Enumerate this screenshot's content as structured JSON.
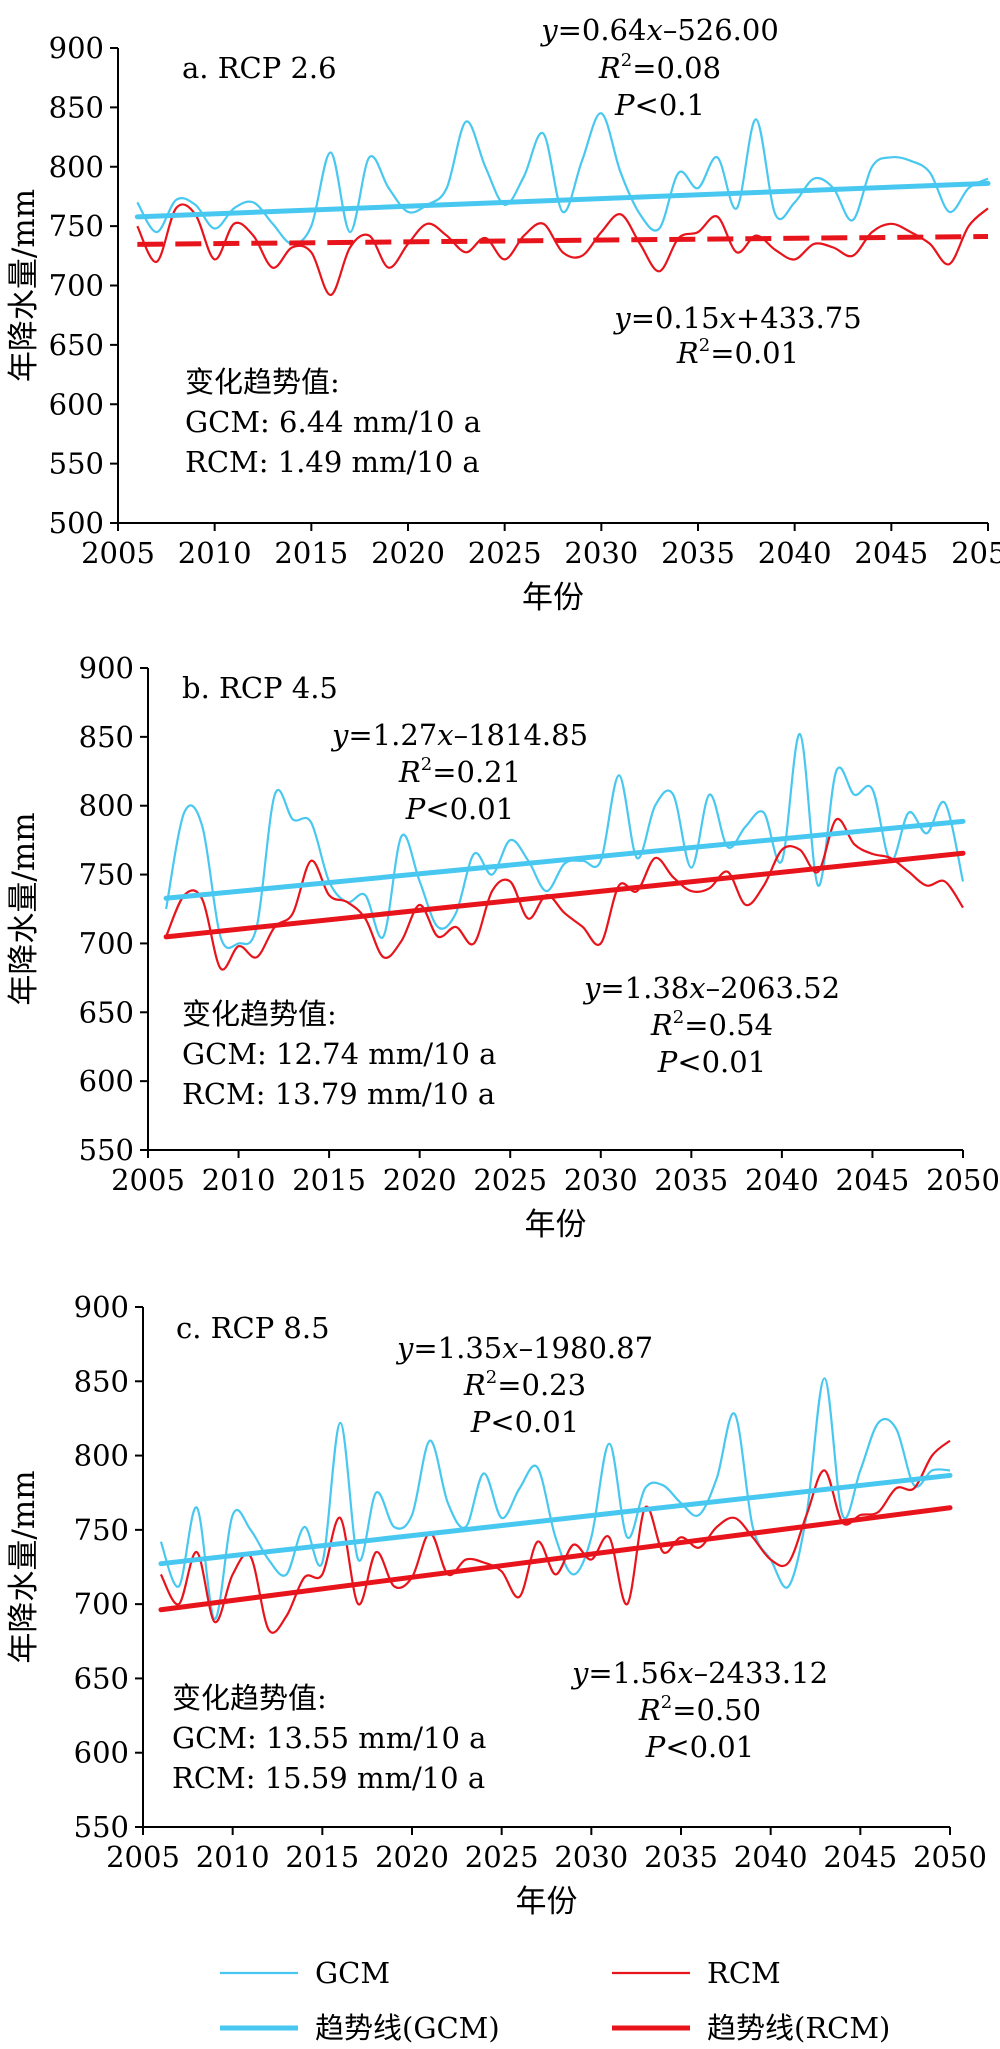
{
  "legend": {
    "entries": [
      {
        "label": "GCM",
        "color": "#48C8F0",
        "style": "thin"
      },
      {
        "label": "RCM",
        "color": "#E8141C",
        "style": "thin"
      },
      {
        "label": "趋势线(GCM)",
        "color": "#48C8F0",
        "style": "thick"
      },
      {
        "label": "趋势线(RCM)",
        "color": "#E8141C",
        "style": "thick"
      }
    ]
  },
  "chart_data": [
    {
      "type": "line",
      "title": "a. RCP 2.6",
      "xlabel": "年份",
      "ylabel": "年降水量/mm",
      "xlim": [
        2005,
        2050
      ],
      "ylim": [
        500,
        900
      ],
      "xticks": [
        2005,
        2010,
        2015,
        2020,
        2025,
        2030,
        2035,
        2040,
        2045,
        2050
      ],
      "yticks": [
        500,
        550,
        600,
        650,
        700,
        750,
        800,
        850,
        900
      ],
      "x": [
        2006,
        2007,
        2008,
        2009,
        2010,
        2011,
        2012,
        2013,
        2014,
        2015,
        2016,
        2017,
        2018,
        2019,
        2020,
        2021,
        2022,
        2023,
        2024,
        2025,
        2026,
        2027,
        2028,
        2029,
        2030,
        2031,
        2032,
        2033,
        2034,
        2035,
        2036,
        2037,
        2038,
        2039,
        2040,
        2041,
        2042,
        2043,
        2044,
        2045,
        2046,
        2047,
        2048,
        2049,
        2050
      ],
      "series": [
        {
          "name": "GCM",
          "color": "#48C8F0",
          "values": [
            770,
            745,
            772,
            768,
            748,
            765,
            770,
            752,
            735,
            750,
            812,
            745,
            808,
            782,
            762,
            768,
            782,
            838,
            800,
            768,
            792,
            828,
            762,
            805,
            845,
            795,
            760,
            748,
            795,
            782,
            808,
            765,
            840,
            760,
            770,
            790,
            782,
            755,
            800,
            808,
            805,
            795,
            762,
            782,
            790
          ]
        },
        {
          "name": "RCM",
          "color": "#E8141C",
          "values": [
            750,
            720,
            765,
            760,
            722,
            752,
            742,
            715,
            732,
            728,
            692,
            732,
            742,
            715,
            735,
            752,
            742,
            728,
            740,
            722,
            742,
            752,
            728,
            725,
            745,
            760,
            735,
            712,
            740,
            745,
            758,
            728,
            742,
            730,
            722,
            735,
            732,
            725,
            745,
            752,
            745,
            735,
            718,
            750,
            765
          ]
        }
      ],
      "trends": [
        {
          "name": "趋势线(GCM)",
          "slope": 0.64,
          "intercept": -526.0,
          "color": "#48C8F0",
          "dashed": false
        },
        {
          "name": "趋势线(RCM)",
          "slope": 0.15,
          "intercept": 433.75,
          "color": "#E8141C",
          "dashed": true
        }
      ],
      "annotations": {
        "gcm_eq": [
          "y",
          "=0.64",
          "x",
          "–526.00"
        ],
        "gcm_r2": "=0.08",
        "gcm_p": "<0.1",
        "rcm_eq": [
          "y",
          "=0.15",
          "x",
          "+433.75"
        ],
        "rcm_r2": "=0.01",
        "rcm_p": "",
        "trend_title": "变化趋势值:",
        "trend_gcm": "GCM: 6.44 mm/10 a",
        "trend_rcm": "RCM: 1.49 mm/10 a"
      }
    },
    {
      "type": "line",
      "title": "b. RCP 4.5",
      "xlabel": "年份",
      "ylabel": "年降水量/mm",
      "xlim": [
        2005,
        2050
      ],
      "ylim": [
        550,
        900
      ],
      "xticks": [
        2005,
        2010,
        2015,
        2020,
        2025,
        2030,
        2035,
        2040,
        2045,
        2050
      ],
      "yticks": [
        550,
        600,
        650,
        700,
        750,
        800,
        850,
        900
      ],
      "x": [
        2006,
        2007,
        2008,
        2009,
        2010,
        2011,
        2012,
        2013,
        2014,
        2015,
        2016,
        2017,
        2018,
        2019,
        2020,
        2021,
        2022,
        2023,
        2024,
        2025,
        2026,
        2027,
        2028,
        2029,
        2030,
        2031,
        2032,
        2033,
        2034,
        2035,
        2036,
        2037,
        2038,
        2039,
        2040,
        2041,
        2042,
        2043,
        2044,
        2045,
        2046,
        2047,
        2048,
        2049,
        2050
      ],
      "series": [
        {
          "name": "GCM",
          "color": "#48C8F0",
          "values": [
            725,
            795,
            785,
            705,
            700,
            712,
            808,
            790,
            788,
            745,
            730,
            735,
            705,
            778,
            745,
            712,
            722,
            765,
            750,
            775,
            760,
            738,
            758,
            760,
            760,
            822,
            762,
            800,
            808,
            755,
            808,
            770,
            785,
            795,
            760,
            852,
            742,
            825,
            808,
            812,
            760,
            795,
            780,
            802,
            745
          ]
        },
        {
          "name": "RCM",
          "color": "#E8141C",
          "values": [
            705,
            735,
            732,
            682,
            698,
            690,
            712,
            722,
            760,
            735,
            730,
            718,
            690,
            702,
            728,
            705,
            712,
            700,
            738,
            745,
            718,
            735,
            722,
            712,
            700,
            742,
            738,
            762,
            748,
            738,
            740,
            752,
            728,
            742,
            768,
            768,
            752,
            790,
            772,
            765,
            762,
            752,
            742,
            745,
            726
          ]
        }
      ],
      "trends": [
        {
          "name": "趋势线(GCM)",
          "slope": 1.27,
          "intercept": -1814.85,
          "color": "#48C8F0",
          "dashed": false
        },
        {
          "name": "趋势线(RCM)",
          "slope": 1.38,
          "intercept": -2063.52,
          "color": "#E8141C",
          "dashed": false
        }
      ],
      "annotations": {
        "gcm_eq": [
          "y",
          "=1.27",
          "x",
          "–1814.85"
        ],
        "gcm_r2": "=0.21",
        "gcm_p": "<0.01",
        "rcm_eq": [
          "y",
          "=1.38",
          "x",
          "–2063.52"
        ],
        "rcm_r2": "=0.54",
        "rcm_p": "<0.01",
        "trend_title": "变化趋势值:",
        "trend_gcm": "GCM: 12.74 mm/10 a",
        "trend_rcm": "RCM: 13.79 mm/10 a"
      }
    },
    {
      "type": "line",
      "title": "c. RCP 8.5",
      "xlabel": "年份",
      "ylabel": "年降水量/mm",
      "xlim": [
        2005,
        2050
      ],
      "ylim": [
        550,
        900
      ],
      "xticks": [
        2005,
        2010,
        2015,
        2020,
        2025,
        2030,
        2035,
        2040,
        2045,
        2050
      ],
      "yticks": [
        550,
        600,
        650,
        700,
        750,
        800,
        850,
        900
      ],
      "x": [
        2006,
        2007,
        2008,
        2009,
        2010,
        2011,
        2012,
        2013,
        2014,
        2015,
        2016,
        2017,
        2018,
        2019,
        2020,
        2021,
        2022,
        2023,
        2024,
        2025,
        2026,
        2027,
        2028,
        2029,
        2030,
        2031,
        2032,
        2033,
        2034,
        2035,
        2036,
        2037,
        2038,
        2039,
        2040,
        2041,
        2042,
        2043,
        2044,
        2045,
        2046,
        2047,
        2048,
        2049,
        2050
      ],
      "series": [
        {
          "name": "GCM",
          "color": "#48C8F0",
          "values": [
            742,
            712,
            765,
            690,
            760,
            750,
            730,
            720,
            752,
            728,
            822,
            730,
            775,
            752,
            760,
            810,
            768,
            752,
            788,
            758,
            778,
            792,
            745,
            720,
            745,
            808,
            745,
            778,
            780,
            768,
            760,
            785,
            828,
            752,
            730,
            712,
            760,
            852,
            760,
            790,
            822,
            818,
            780,
            790,
            790
          ]
        },
        {
          "name": "RCM",
          "color": "#E8141C",
          "values": [
            720,
            700,
            735,
            688,
            720,
            732,
            683,
            692,
            718,
            720,
            758,
            700,
            735,
            712,
            718,
            748,
            720,
            730,
            728,
            722,
            705,
            742,
            720,
            740,
            730,
            745,
            700,
            765,
            735,
            745,
            738,
            752,
            758,
            745,
            730,
            728,
            760,
            790,
            755,
            760,
            762,
            778,
            778,
            800,
            810
          ]
        }
      ],
      "trends": [
        {
          "name": "趋势线(GCM)",
          "slope": 1.35,
          "intercept": -1980.87,
          "color": "#48C8F0",
          "dashed": false
        },
        {
          "name": "趋势线(RCM)",
          "slope": 1.56,
          "intercept": -2433.12,
          "color": "#E8141C",
          "dashed": false
        }
      ],
      "annotations": {
        "gcm_eq": [
          "y",
          "=1.35",
          "x",
          "–1980.87"
        ],
        "gcm_r2": "=0.23",
        "gcm_p": "<0.01",
        "rcm_eq": [
          "y",
          "=1.56",
          "x",
          "–2433.12"
        ],
        "rcm_r2": "=0.50",
        "rcm_p": "<0.01",
        "trend_title": "变化趋势值:",
        "trend_gcm": "GCM: 13.55 mm/10 a",
        "trend_rcm": "RCM: 15.59 mm/10 a"
      }
    }
  ]
}
